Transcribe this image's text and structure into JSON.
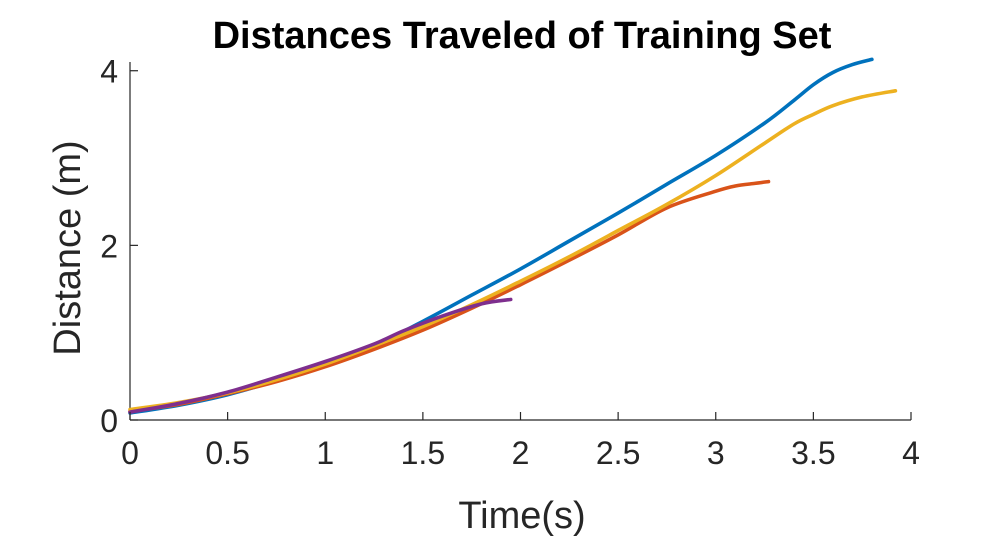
{
  "chart_data": {
    "type": "line",
    "title": "Distances Traveled of Training Set",
    "xlabel": "Time(s)",
    "ylabel": "Distance (m)",
    "xlim": [
      0,
      4
    ],
    "ylim": [
      0,
      4.1
    ],
    "xticks": [
      0,
      0.5,
      1,
      1.5,
      2,
      2.5,
      3,
      3.5,
      4
    ],
    "xtick_labels": [
      "0",
      "0.5",
      "1",
      "1.5",
      "2",
      "2.5",
      "3",
      "3.5",
      "4"
    ],
    "yticks": [
      0,
      2,
      4
    ],
    "ytick_labels": [
      "0",
      "2",
      "4"
    ],
    "grid": false,
    "legend": "none",
    "series": [
      {
        "color": "#0072BD",
        "x": [
          0,
          0.25,
          0.5,
          0.75,
          1.0,
          1.25,
          1.5,
          1.75,
          2.0,
          2.25,
          2.5,
          2.75,
          3.0,
          3.25,
          3.4,
          3.5,
          3.6,
          3.7,
          3.8
        ],
        "y": [
          0.08,
          0.17,
          0.29,
          0.45,
          0.63,
          0.85,
          1.13,
          1.43,
          1.73,
          2.05,
          2.37,
          2.7,
          3.03,
          3.4,
          3.66,
          3.84,
          3.98,
          4.07,
          4.13
        ]
      },
      {
        "color": "#D95319",
        "x": [
          0,
          0.25,
          0.5,
          0.75,
          1.0,
          1.25,
          1.5,
          1.75,
          2.0,
          2.25,
          2.5,
          2.75,
          3.0,
          3.1,
          3.2,
          3.27
        ],
        "y": [
          0.1,
          0.18,
          0.3,
          0.44,
          0.61,
          0.81,
          1.03,
          1.28,
          1.55,
          1.83,
          2.12,
          2.43,
          2.62,
          2.68,
          2.71,
          2.73
        ]
      },
      {
        "color": "#EDB120",
        "x": [
          0,
          0.25,
          0.5,
          0.75,
          1.0,
          1.25,
          1.5,
          1.75,
          2.0,
          2.25,
          2.5,
          2.75,
          3.0,
          3.25,
          3.4,
          3.5,
          3.6,
          3.75,
          3.92
        ],
        "y": [
          0.12,
          0.2,
          0.31,
          0.46,
          0.64,
          0.85,
          1.07,
          1.32,
          1.59,
          1.87,
          2.17,
          2.47,
          2.8,
          3.17,
          3.39,
          3.5,
          3.6,
          3.7,
          3.77
        ]
      },
      {
        "color": "#7E2F8E",
        "x": [
          0,
          0.25,
          0.5,
          0.75,
          1.0,
          1.25,
          1.4,
          1.6,
          1.8,
          1.95
        ],
        "y": [
          0.09,
          0.19,
          0.32,
          0.49,
          0.67,
          0.87,
          1.02,
          1.19,
          1.33,
          1.38
        ]
      }
    ]
  }
}
